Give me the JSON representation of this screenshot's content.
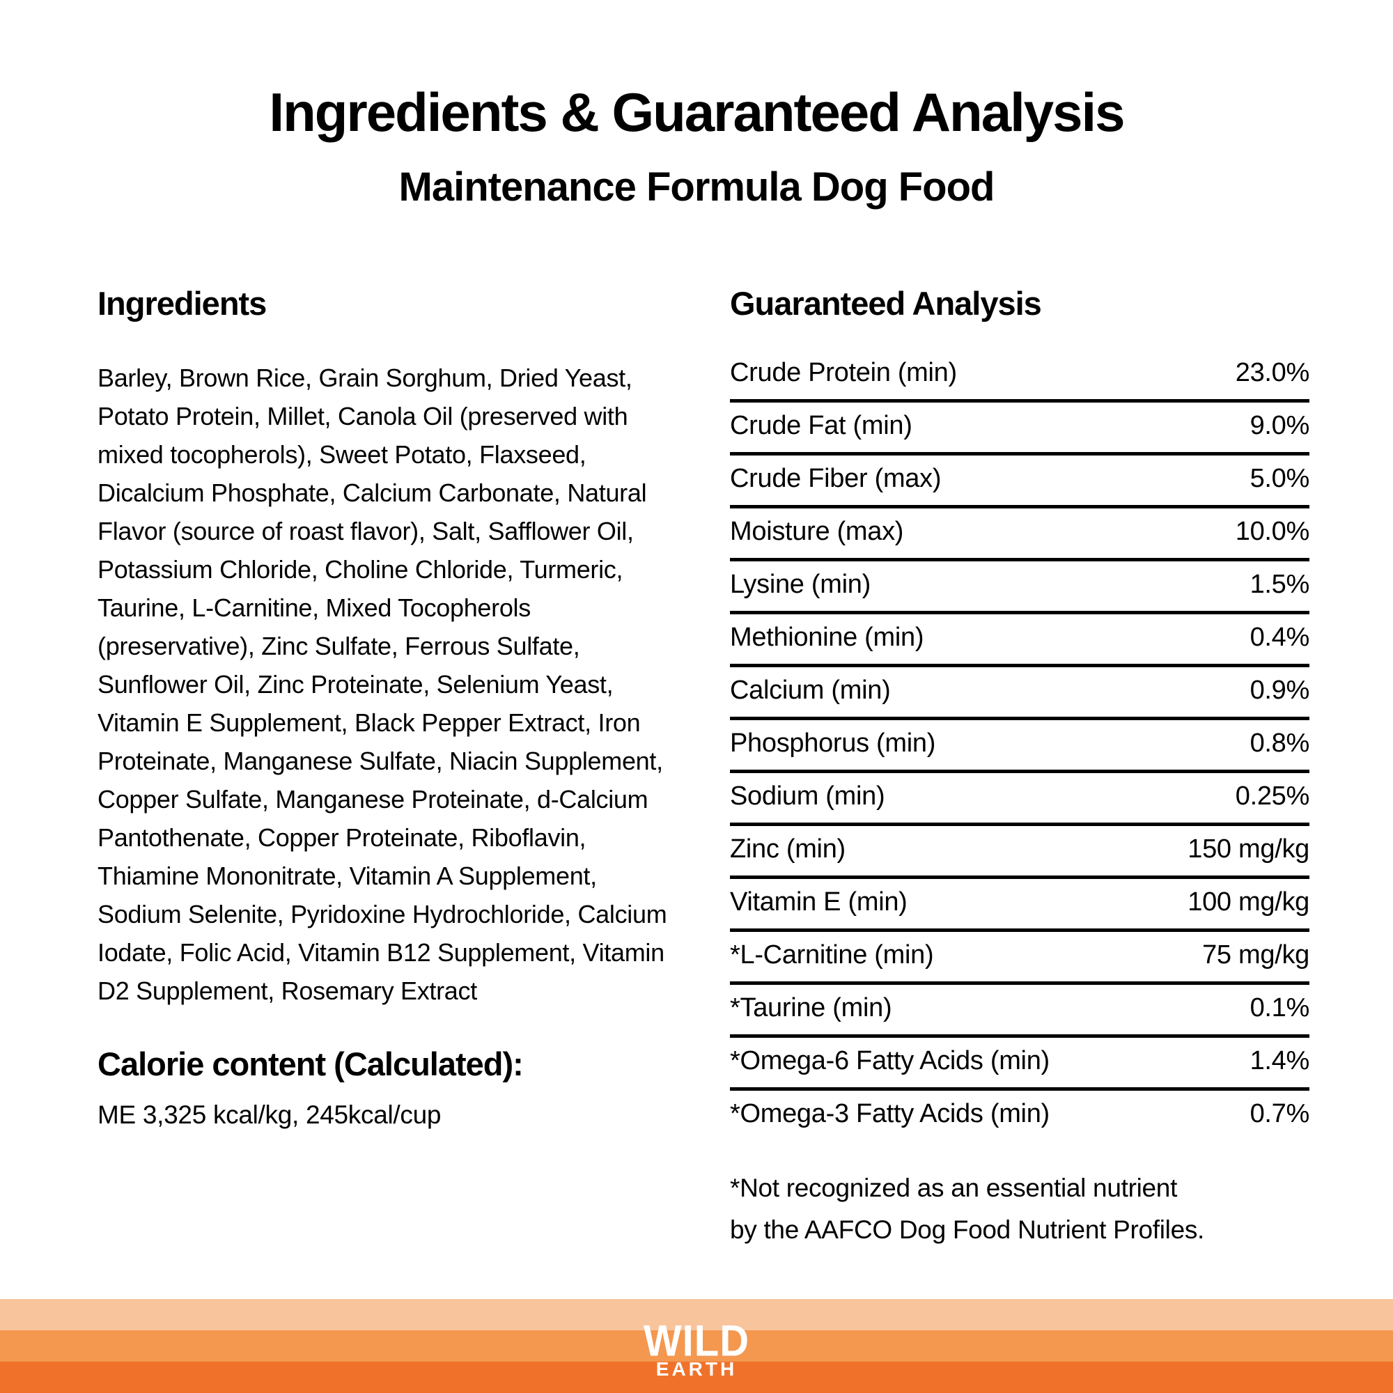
{
  "header": {
    "title": "Ingredients & Guaranteed Analysis",
    "subtitle": "Maintenance Formula Dog Food"
  },
  "ingredients": {
    "heading": "Ingredients",
    "text": "Barley, Brown Rice, Grain Sorghum, Dried Yeast, Potato Protein, Millet, Canola Oil (preserved with mixed tocopherols), Sweet Potato, Flaxseed, Dicalcium Phosphate, Calcium Carbonate, Natural Flavor (source of roast flavor), Salt, Safflower Oil, Potassium Chloride, Choline Chloride, Turmeric, Taurine, L-Carnitine, Mixed Tocopherols (preservative), Zinc Sulfate, Ferrous Sulfate, Sunflower Oil, Zinc Proteinate, Selenium Yeast, Vitamin E Supplement, Black Pepper Extract, Iron Proteinate, Manganese Sulfate, Niacin Supplement, Copper Sulfate, Manganese Proteinate, d-Calcium Pantothenate, Copper Proteinate, Riboflavin, Thiamine Mononitrate, Vitamin A Supplement, Sodium Selenite, Pyridoxine Hydrochloride, Calcium Iodate, Folic Acid, Vitamin B12 Supplement, Vitamin D2 Supplement, Rosemary Extract"
  },
  "calories": {
    "heading": "Calorie content (Calculated):",
    "text": "ME 3,325 kcal/kg, 245kcal/cup"
  },
  "analysis": {
    "heading": "Guaranteed Analysis",
    "rows": [
      {
        "label": "Crude Protein (min)",
        "value": "23.0%"
      },
      {
        "label": "Crude Fat (min)",
        "value": "9.0%"
      },
      {
        "label": "Crude Fiber (max)",
        "value": "5.0%"
      },
      {
        "label": "Moisture (max)",
        "value": "10.0%"
      },
      {
        "label": "Lysine (min)",
        "value": "1.5%"
      },
      {
        "label": "Methionine (min)",
        "value": "0.4%"
      },
      {
        "label": "Calcium (min)",
        "value": "0.9%"
      },
      {
        "label": "Phosphorus (min)",
        "value": "0.8%"
      },
      {
        "label": "Sodium (min)",
        "value": "0.25%"
      },
      {
        "label": "Zinc (min)",
        "value": "150 mg/kg"
      },
      {
        "label": "Vitamin E (min)",
        "value": "100 mg/kg"
      },
      {
        "label": "*L-Carnitine (min)",
        "value": "75 mg/kg"
      },
      {
        "label": "*Taurine (min)",
        "value": "0.1%"
      },
      {
        "label": "*Omega-6 Fatty Acids (min)",
        "value": "1.4%"
      },
      {
        "label": "*Omega-3 Fatty Acids (min)",
        "value": "0.7%"
      }
    ],
    "footnote_line1": "*Not recognized as an essential nutrient",
    "footnote_line2": "by the AAFCO Dog Food Nutrient Profiles."
  },
  "footer": {
    "logo_top": "WILD",
    "logo_bottom": "EARTH",
    "stripe_colors": [
      "#f8c49c",
      "#f4974f",
      "#f0722a"
    ],
    "logo_color": "#ffffff"
  },
  "colors": {
    "background": "#ffffff",
    "text": "#000000",
    "divider": "#000000"
  }
}
